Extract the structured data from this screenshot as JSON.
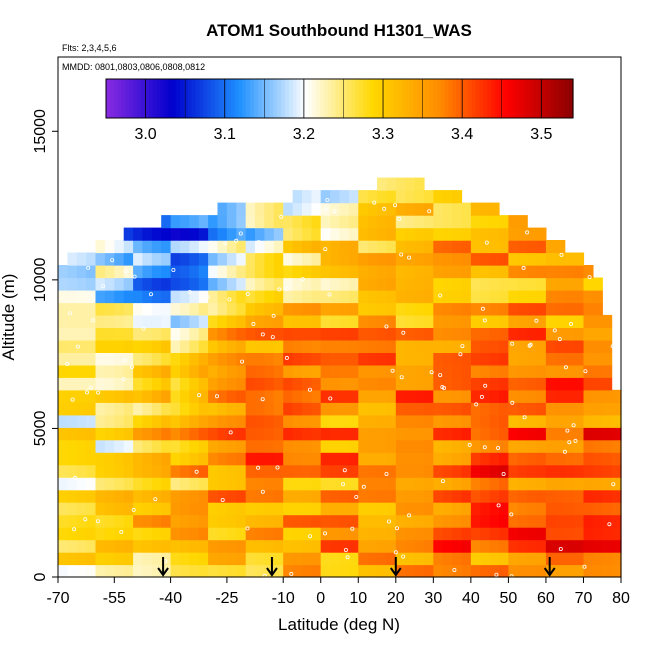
{
  "chart_data": {
    "type": "heatmap",
    "title": "ATOM1 Southbound H1301_WAS",
    "flights_note": "Flts: 2,3,4,5,6",
    "dates_note": "MMDD: 0801,0803,0806,0808,0812",
    "xlabel": "Latitude (deg N)",
    "ylabel": "Altitude (m)",
    "xlim": [
      -70,
      80
    ],
    "ylim": [
      0,
      17500
    ],
    "x_ticks": [
      -70,
      -55,
      -40,
      -25,
      -10,
      0,
      10,
      20,
      30,
      40,
      50,
      60,
      70,
      80
    ],
    "x_tick_labels": [
      "-70",
      "-55",
      "-40",
      "-25",
      "-10",
      "0",
      "10",
      "20",
      "30",
      "40",
      "50",
      "60",
      "70",
      "80"
    ],
    "y_ticks": [
      0,
      5000,
      10000,
      15000
    ],
    "y_tick_labels": [
      "0",
      "5000",
      "10000",
      "15000"
    ],
    "colorbar": {
      "range": [
        2.95,
        3.54
      ],
      "ticks": [
        3.0,
        3.1,
        3.2,
        3.3,
        3.4,
        3.5
      ],
      "tick_labels": [
        "3.0",
        "3.1",
        "3.2",
        "3.3",
        "3.4",
        "3.5"
      ],
      "colors": [
        "#8a2be2",
        "#0000cd",
        "#1e90ff",
        "#ffffff",
        "#ffd700",
        "#ff8c00",
        "#ff0000",
        "#8b0000"
      ]
    },
    "flight_markers_lat": [
      -42,
      -13,
      20,
      61
    ],
    "envelope": [
      {
        "lat": -70,
        "alt_max": 10500
      },
      {
        "lat": -47,
        "alt_max": 11800
      },
      {
        "lat": -20,
        "alt_max": 12600
      },
      {
        "lat": 25,
        "alt_max": 13400
      },
      {
        "lat": 55,
        "alt_max": 12000
      },
      {
        "lat": 73,
        "alt_max": 10400
      },
      {
        "lat": 78,
        "alt_max": 8000
      },
      {
        "lat": 79,
        "alt_max": 5500
      },
      {
        "lat": 80,
        "alt_max": 500
      }
    ],
    "field_description_value_at": [
      {
        "lat": -60,
        "alt": 8000,
        "value": 3.22
      },
      {
        "lat": -40,
        "alt": 11000,
        "value": 3.08
      },
      {
        "lat": -20,
        "alt": 6000,
        "value": 3.4
      },
      {
        "lat": 20,
        "alt": 4000,
        "value": 3.36
      },
      {
        "lat": 60,
        "alt": 3000,
        "value": 3.42
      }
    ]
  }
}
